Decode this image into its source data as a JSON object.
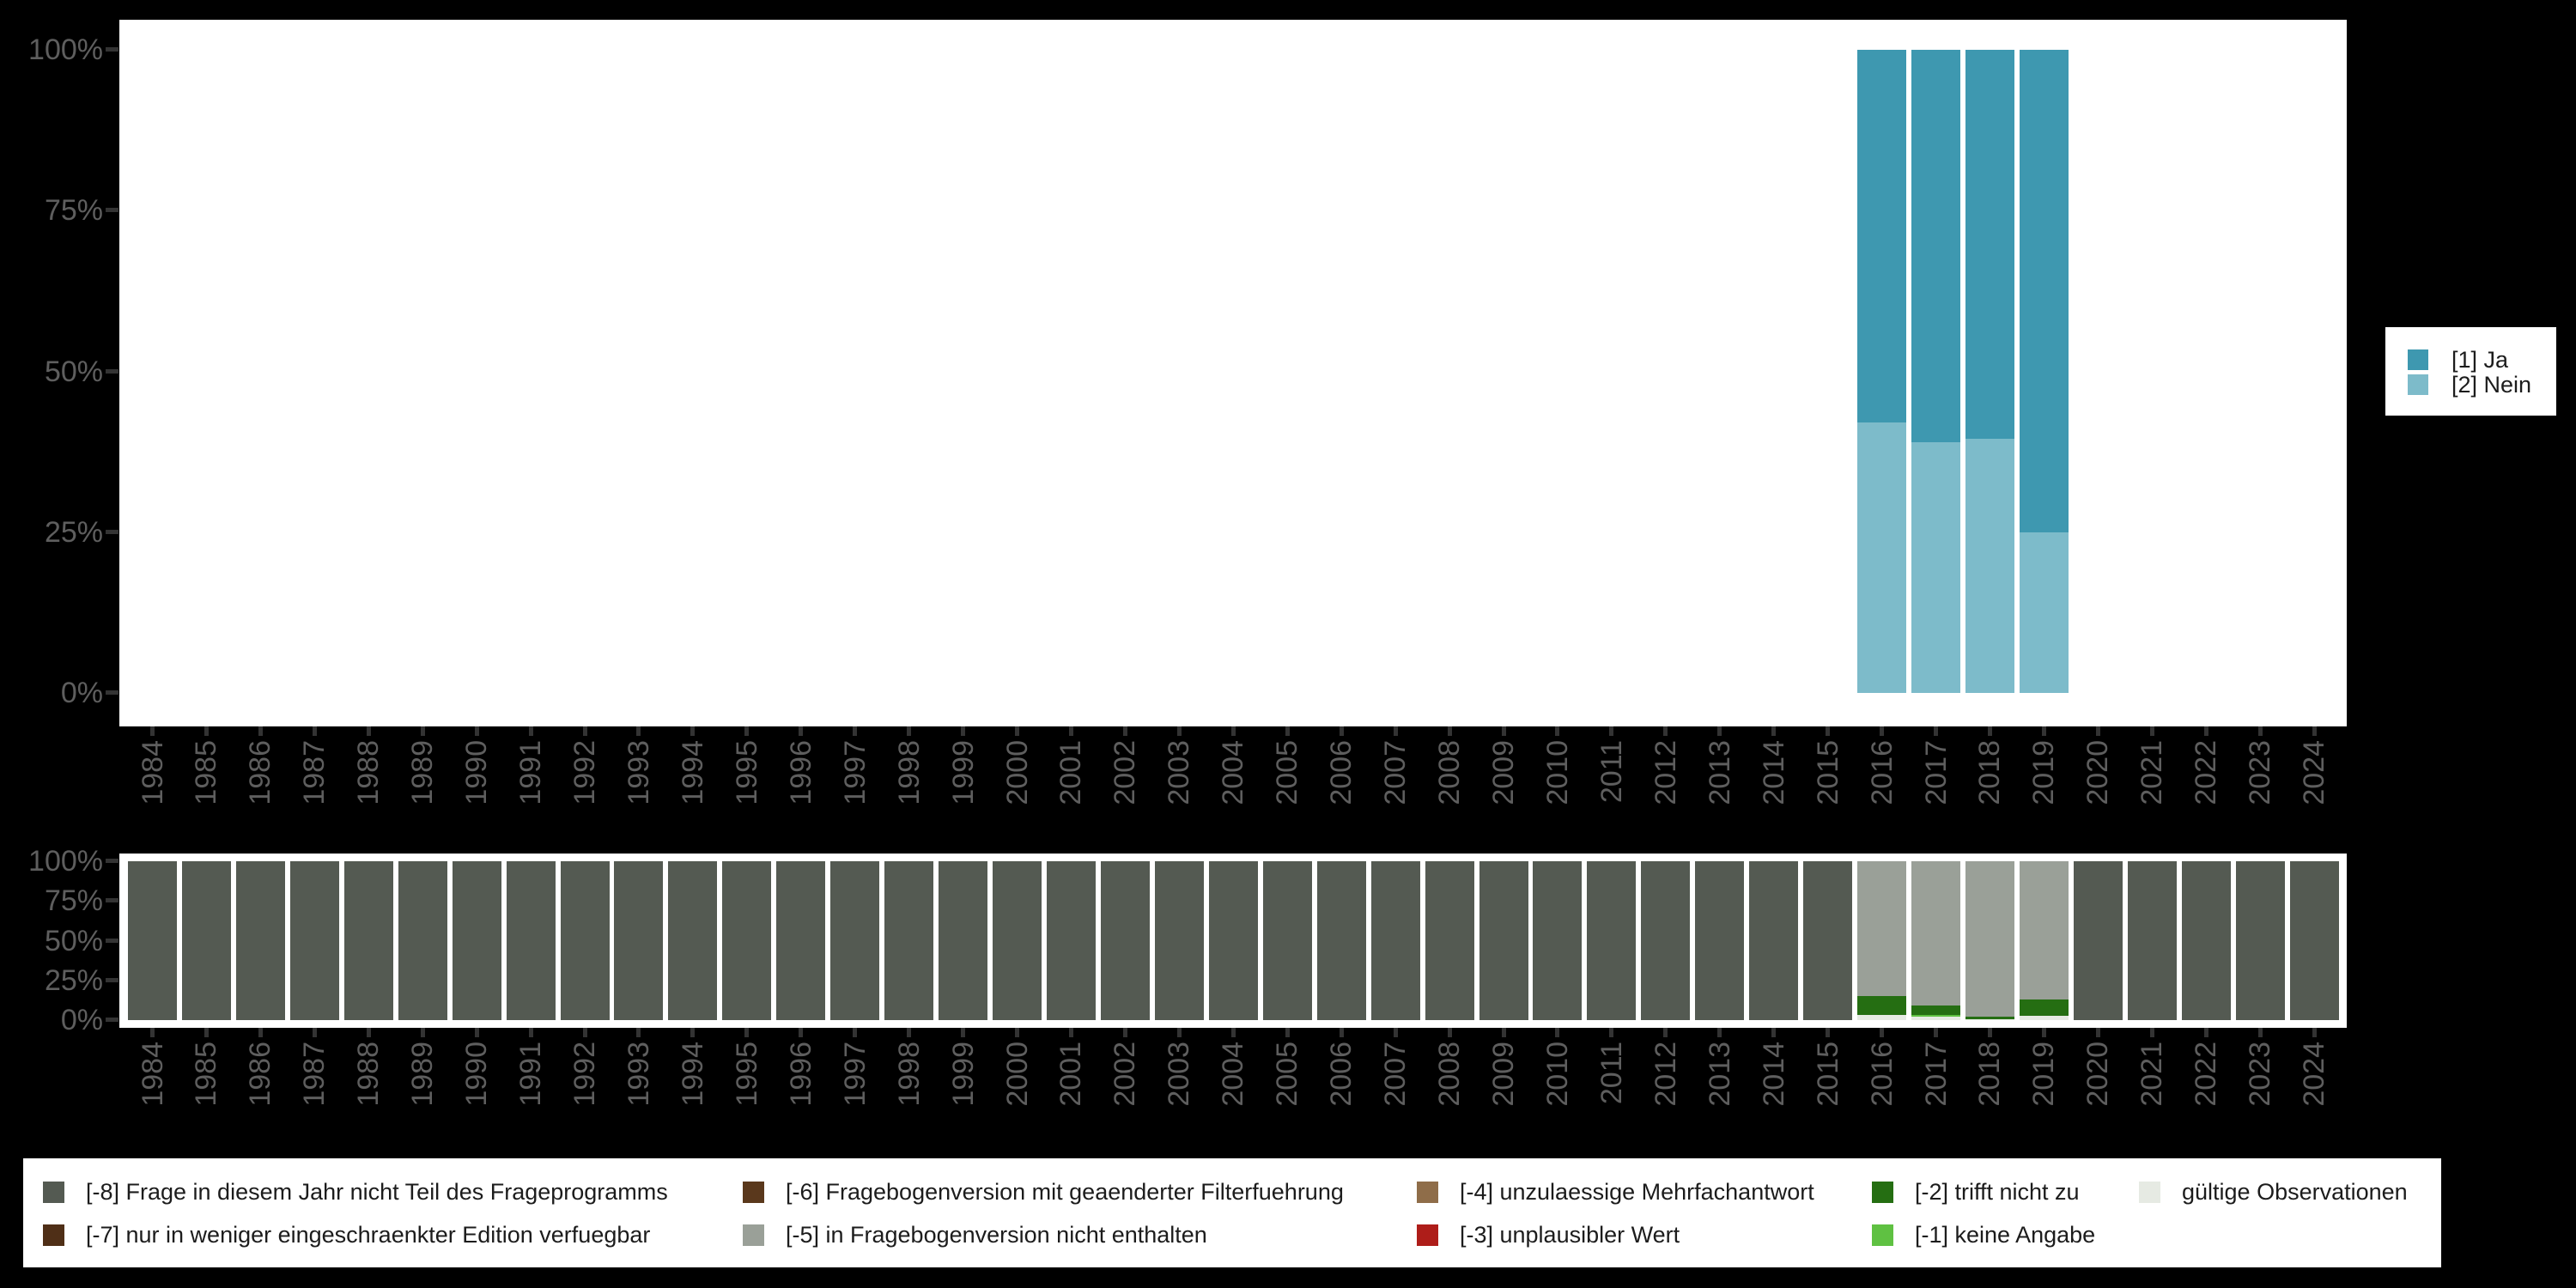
{
  "colors": {
    "background": "#000000",
    "plot_background": "#ffffff",
    "axis_text": "#5e5e5e",
    "tick_mark": "#333333",
    "legend_text": "#1c1c1c",
    "ja": "#3e98b0",
    "nein": "#7dbbca",
    "m8": "#545a52",
    "m7": "#4f2f17",
    "m6": "#5a381c",
    "m5": "#9aa098",
    "m4": "#8f6d49",
    "m3": "#ae1d19",
    "m2": "#256e12",
    "m1": "#5fc142",
    "valid": "#e6eae3"
  },
  "chart_data": [
    {
      "type": "bar",
      "stacked": true,
      "unit": "percent",
      "categories": [
        "1984",
        "1985",
        "1986",
        "1987",
        "1988",
        "1989",
        "1990",
        "1991",
        "1992",
        "1993",
        "1994",
        "1995",
        "1996",
        "1997",
        "1998",
        "1999",
        "2000",
        "2001",
        "2002",
        "2003",
        "2004",
        "2005",
        "2006",
        "2007",
        "2008",
        "2009",
        "2010",
        "2011",
        "2012",
        "2013",
        "2014",
        "2015",
        "2016",
        "2017",
        "2018",
        "2019",
        "2020",
        "2021",
        "2022",
        "2023",
        "2024"
      ],
      "ylim": [
        0,
        100
      ],
      "y_tick_labels_top_down": [
        "100%",
        "75%",
        "50%",
        "25%",
        "0%"
      ],
      "grid": false,
      "legend_position": "right",
      "series_order": "bottom-to-top",
      "series": [
        {
          "key": "nein",
          "name": "[2] Nein",
          "color": "#7dbbca",
          "values": [
            0,
            0,
            0,
            0,
            0,
            0,
            0,
            0,
            0,
            0,
            0,
            0,
            0,
            0,
            0,
            0,
            0,
            0,
            0,
            0,
            0,
            0,
            0,
            0,
            0,
            0,
            0,
            0,
            0,
            0,
            0,
            0,
            42,
            39,
            39.5,
            25,
            0,
            0,
            0,
            0,
            0
          ]
        },
        {
          "key": "ja",
          "name": "[1] Ja",
          "color": "#3e98b0",
          "values": [
            0,
            0,
            0,
            0,
            0,
            0,
            0,
            0,
            0,
            0,
            0,
            0,
            0,
            0,
            0,
            0,
            0,
            0,
            0,
            0,
            0,
            0,
            0,
            0,
            0,
            0,
            0,
            0,
            0,
            0,
            0,
            0,
            58,
            61,
            60.5,
            75,
            0,
            0,
            0,
            0,
            0
          ]
        }
      ]
    },
    {
      "type": "bar",
      "stacked": true,
      "unit": "percent",
      "categories": [
        "1984",
        "1985",
        "1986",
        "1987",
        "1988",
        "1989",
        "1990",
        "1991",
        "1992",
        "1993",
        "1994",
        "1995",
        "1996",
        "1997",
        "1998",
        "1999",
        "2000",
        "2001",
        "2002",
        "2003",
        "2004",
        "2005",
        "2006",
        "2007",
        "2008",
        "2009",
        "2010",
        "2011",
        "2012",
        "2013",
        "2014",
        "2015",
        "2016",
        "2017",
        "2018",
        "2019",
        "2020",
        "2021",
        "2022",
        "2023",
        "2024"
      ],
      "ylim": [
        0,
        100
      ],
      "y_tick_labels_top_down": [
        "100%",
        "75%",
        "50%",
        "25%",
        "0%"
      ],
      "grid": false,
      "legend_position": "bottom",
      "series_order": "bottom-to-top",
      "series": [
        {
          "key": "valid",
          "name": "gültige Observationen",
          "color": "#e6eae3",
          "values": [
            0,
            0,
            0,
            0,
            0,
            0,
            0,
            0,
            0,
            0,
            0,
            0,
            0,
            0,
            0,
            0,
            0,
            0,
            0,
            0,
            0,
            0,
            0,
            0,
            0,
            0,
            0,
            0,
            0,
            0,
            0,
            0,
            3,
            2,
            0.3,
            2.5,
            0,
            0,
            0,
            0,
            0
          ]
        },
        {
          "key": "m1",
          "name": "[-1] keine Angabe",
          "color": "#5fc142",
          "values": [
            0,
            0,
            0,
            0,
            0,
            0,
            0,
            0,
            0,
            0,
            0,
            0,
            0,
            0,
            0,
            0,
            0,
            0,
            0,
            0,
            0,
            0,
            0,
            0,
            0,
            0,
            0,
            0,
            0,
            0,
            0,
            0,
            0,
            1,
            0,
            0,
            0,
            0,
            0,
            0,
            0
          ]
        },
        {
          "key": "m2",
          "name": "[-2] trifft nicht zu",
          "color": "#256e12",
          "values": [
            0,
            0,
            0,
            0,
            0,
            0,
            0,
            0,
            0,
            0,
            0,
            0,
            0,
            0,
            0,
            0,
            0,
            0,
            0,
            0,
            0,
            0,
            0,
            0,
            0,
            0,
            0,
            0,
            0,
            0,
            0,
            0,
            12,
            6,
            1.7,
            10.5,
            0,
            0,
            0,
            0,
            0
          ]
        },
        {
          "key": "m5",
          "name": "[-5] in Fragebogenversion nicht enthalten",
          "color": "#9aa098",
          "values": [
            0,
            0,
            0,
            0,
            0,
            0,
            0,
            0,
            0,
            0,
            0,
            0,
            0,
            0,
            0,
            0,
            0,
            0,
            0,
            0,
            0,
            0,
            0,
            0,
            0,
            0,
            0,
            0,
            0,
            0,
            0,
            0,
            85,
            91,
            98,
            87,
            0,
            0,
            0,
            0,
            0
          ]
        },
        {
          "key": "m8",
          "name": "[-8] Frage in diesem Jahr nicht Teil des Frageprogramms",
          "color": "#545a52",
          "values": [
            100,
            100,
            100,
            100,
            100,
            100,
            100,
            100,
            100,
            100,
            100,
            100,
            100,
            100,
            100,
            100,
            100,
            100,
            100,
            100,
            100,
            100,
            100,
            100,
            100,
            100,
            100,
            100,
            100,
            100,
            100,
            100,
            0,
            0,
            0,
            0,
            100,
            100,
            100,
            100,
            100
          ]
        }
      ]
    }
  ],
  "legend_right": {
    "items": [
      {
        "key": "ja",
        "label": "[1] Ja"
      },
      {
        "key": "nein",
        "label": "[2] Nein"
      }
    ]
  },
  "legend_bottom": {
    "columns": [
      [
        {
          "key": "m8",
          "label": "[-8] Frage in diesem Jahr nicht Teil des Frageprogramms"
        },
        {
          "key": "m7",
          "label": "[-7] nur in weniger eingeschraenkter Edition verfuegbar"
        }
      ],
      [
        {
          "key": "m6",
          "label": "[-6] Fragebogenversion mit geaenderter Filterfuehrung"
        },
        {
          "key": "m5",
          "label": "[-5] in Fragebogenversion nicht enthalten"
        }
      ],
      [
        {
          "key": "m4",
          "label": "[-4] unzulaessige Mehrfachantwort"
        },
        {
          "key": "m3",
          "label": "[-3] unplausibler Wert"
        }
      ],
      [
        {
          "key": "m2",
          "label": "[-2] trifft nicht zu"
        },
        {
          "key": "m1",
          "label": "[-1] keine Angabe"
        }
      ],
      [
        {
          "key": "valid",
          "label": "gültige Observationen"
        }
      ]
    ]
  }
}
